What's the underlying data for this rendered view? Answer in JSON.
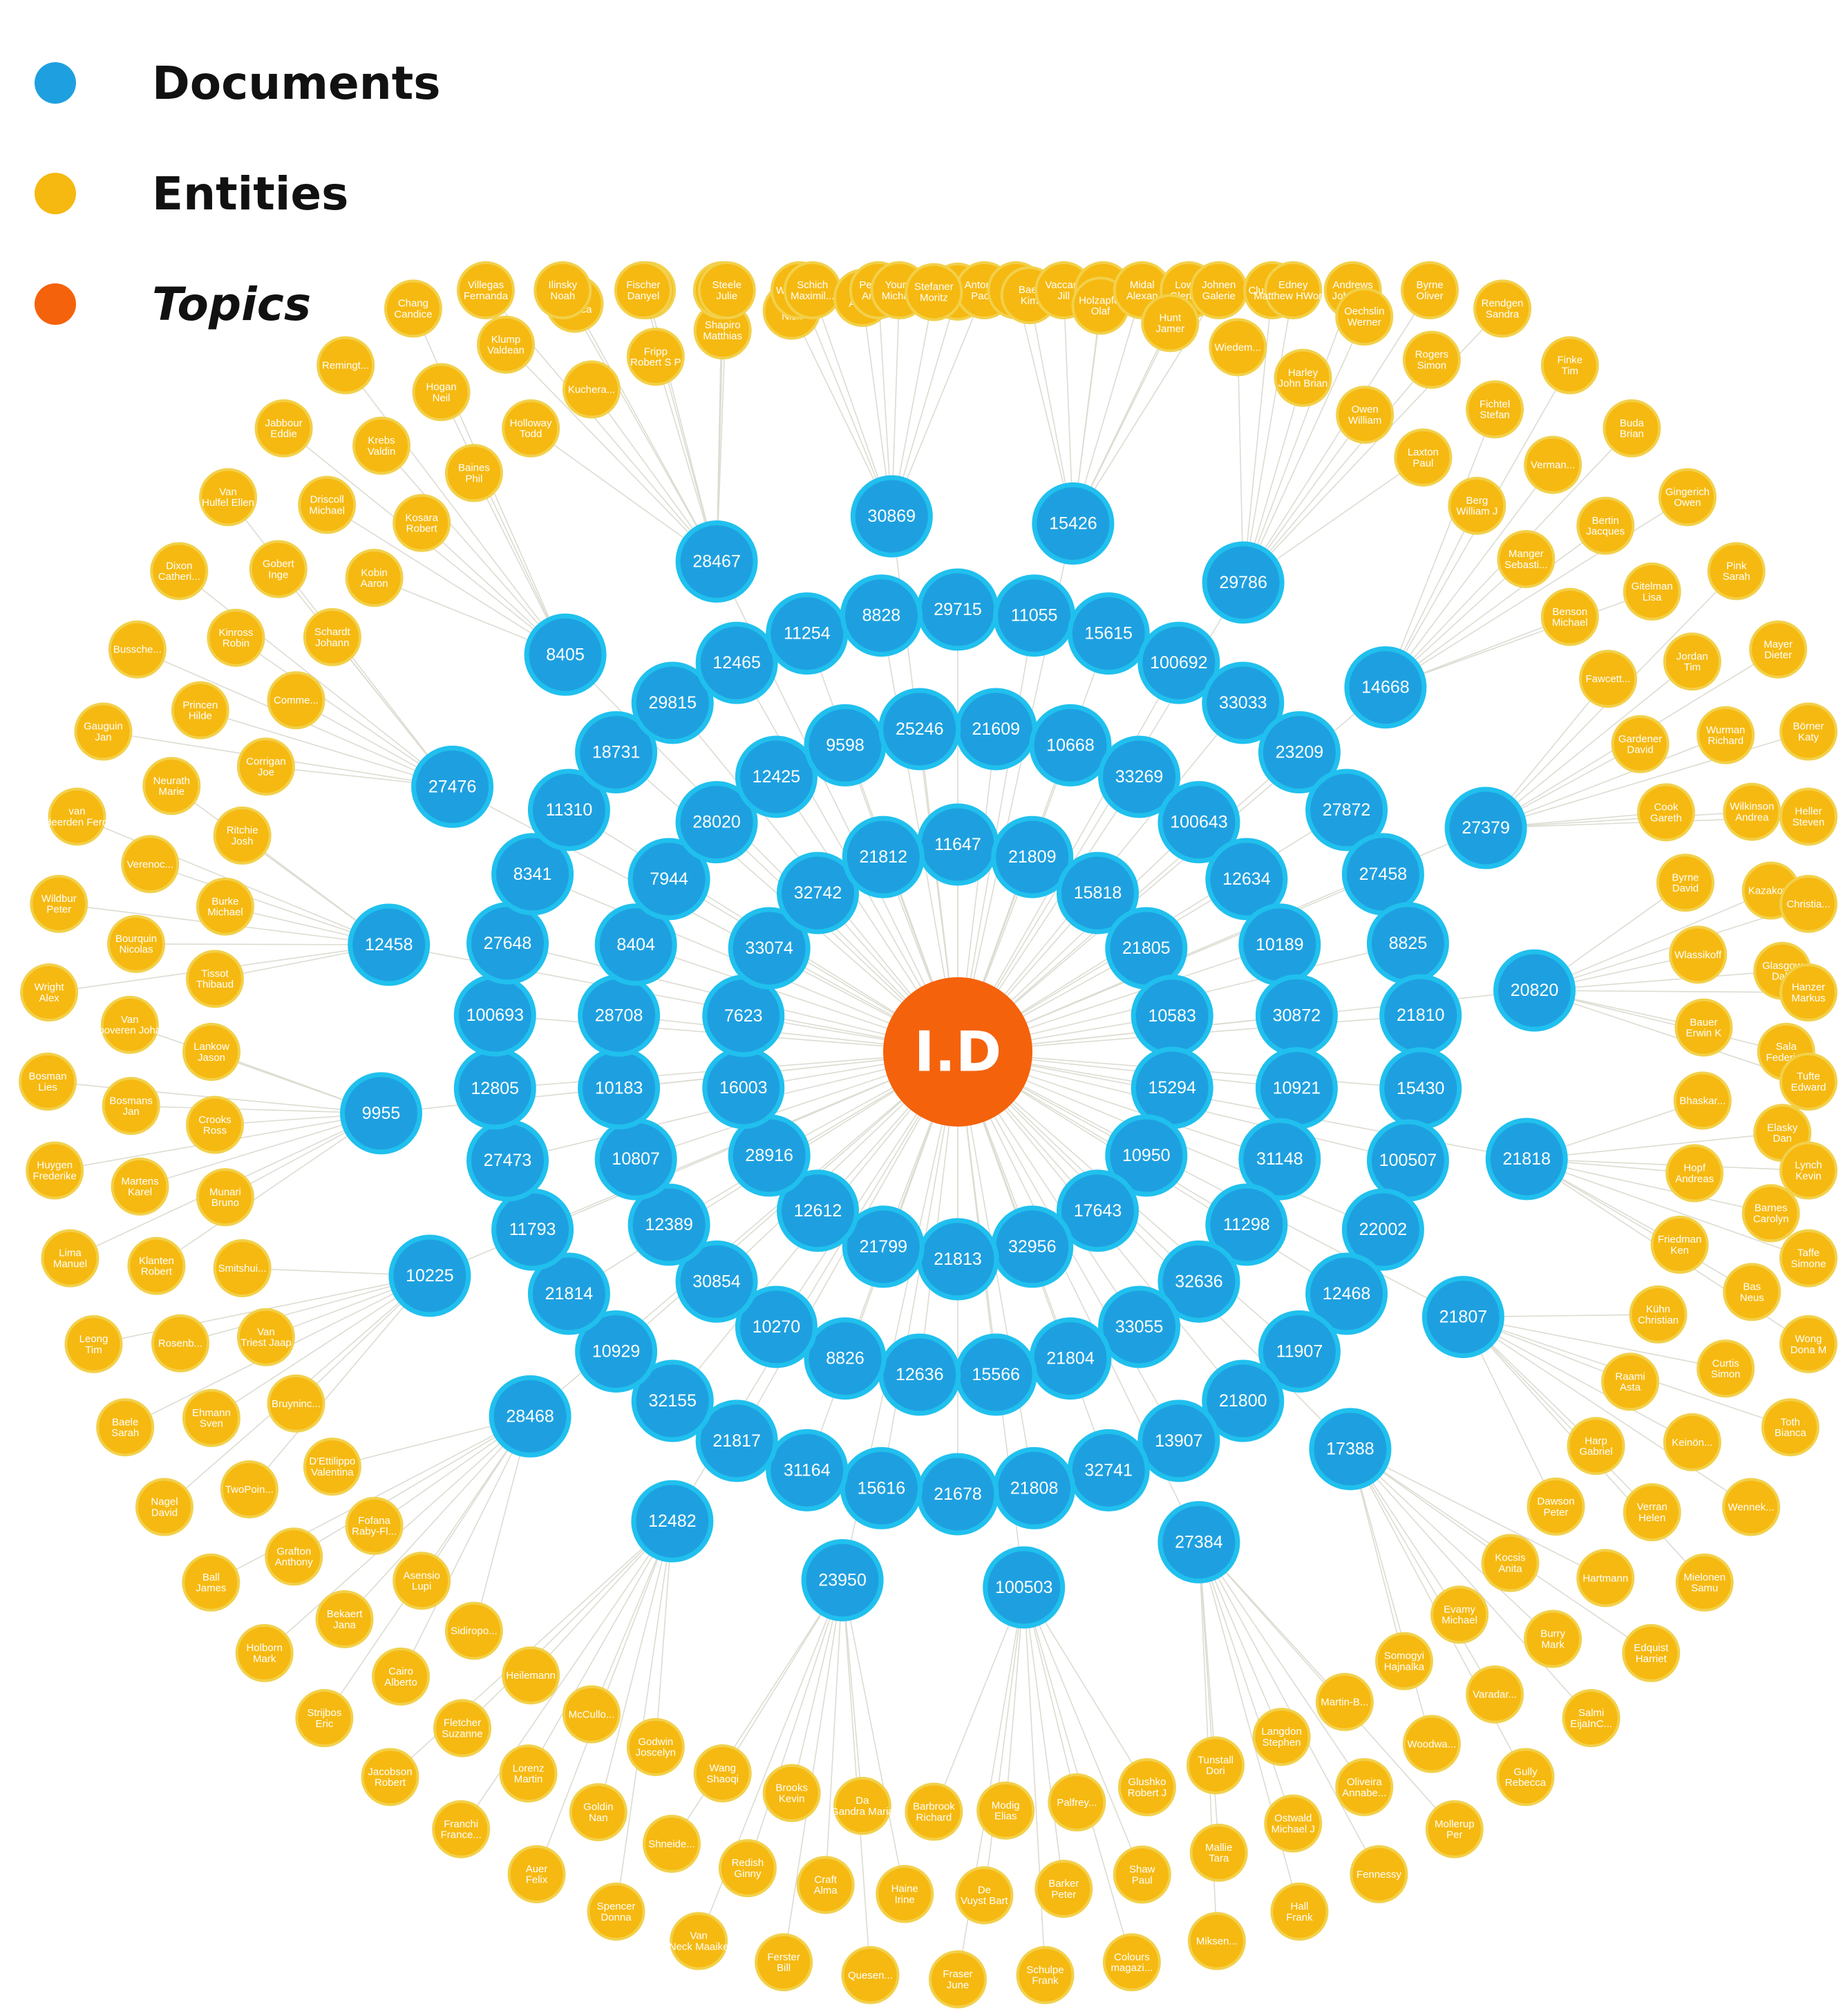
{
  "legend": [
    {
      "label": "Documents",
      "color": "#1ea0e0"
    },
    {
      "label": "Entities",
      "color": "#f6b911"
    },
    {
      "label": "Topics",
      "color": "#f5620c"
    }
  ],
  "center": {
    "label": "I.D",
    "color": "#f5620c"
  },
  "documents": [
    "11647",
    "21809",
    "15818",
    "21805",
    "10583",
    "15294",
    "10950",
    "17643",
    "32956",
    "21813",
    "21799",
    "12612",
    "28916",
    "16003",
    "7623",
    "33074",
    "32742",
    "21812",
    "21609",
    "10668",
    "33269",
    "100643",
    "12634",
    "10189",
    "30872",
    "10921",
    "31148",
    "11298",
    "32636",
    "33055",
    "21804",
    "15566",
    "12636",
    "8826",
    "10270",
    "30854",
    "12389",
    "10807",
    "10183",
    "28708",
    "8404",
    "7944",
    "28020",
    "12425",
    "9598",
    "25246",
    "29715",
    "11055",
    "15615",
    "100692",
    "33033",
    "23209",
    "27872",
    "27458",
    "8825",
    "21810",
    "15430",
    "100507",
    "22002",
    "12468",
    "11907",
    "21800",
    "13907",
    "32741",
    "21808",
    "21678",
    "15616",
    "31164",
    "21817",
    "32155",
    "10929",
    "21814",
    "11793",
    "27473",
    "12805",
    "100693",
    "27648",
    "8341",
    "11310",
    "18731",
    "29815",
    "12465",
    "11254",
    "8828",
    "15426",
    "29786",
    "14668",
    "27379",
    "20820",
    "21818",
    "21807",
    "17388",
    "27384",
    "100503",
    "23950",
    "12482",
    "28468",
    "10225",
    "9955",
    "12458",
    "27476",
    "8405",
    "28467",
    "30869"
  ],
  "entities": [
    "Slavin Kevin",
    "Antonelli Paola",
    "Vinh Khoi",
    "Baer Kim",
    "Vaccara Jill",
    "Spiegl Andreas",
    "Holzapfel Olaf",
    "Midal Alexan",
    "Lowry Glenn D",
    "Hunt Jamer",
    "Johnen Galerie",
    "Cluccarelli",
    "Wiedem...",
    "Edney Matthew HWorks",
    "Andrews John H...",
    "Harley John Brian",
    "Oechslin Werner",
    "Byrne Oliver",
    "Owen William",
    "Rogers Simon",
    "Rendgen Sandra",
    "Laxton Paul",
    "Fichtel Stefan",
    "Finke Tim",
    "Berg William J",
    "Verman...",
    "Buda Brian",
    "Manger Sebasti...",
    "Bertin Jacques",
    "Gingerich Owen",
    "Benson Michael",
    "Gitelman Lisa",
    "Pink Sarah",
    "Fawcett...",
    "Jordan Tim",
    "Mayer Dieter",
    "Gardener David",
    "Wurman Richard",
    "Börner Katy",
    "Cook Gareth",
    "Wilkinson Andrea",
    "Heller Steven",
    "Byrne David",
    "Kazakova",
    "Christia...",
    "Wlassikoff",
    "Glasgow Dale",
    "Hanzer Markus",
    "Bauer Erwin K",
    "Sala Federica",
    "Tufte Edward",
    "Bhaskar...",
    "Elasky Dan",
    "Lynch Kevin",
    "Hopf Andreas",
    "Barnes Carolyn",
    "Taffe Simone",
    "Friedman Ken",
    "Bas Neus",
    "Wong Dona M",
    "Kühn Christian",
    "Curtis Simon",
    "Toth Bianca",
    "Raami Asta",
    "Keinön...",
    "Wennek...",
    "Harp Gabriel",
    "Verran Helen",
    "Mielonen Samu",
    "Dawson Peter",
    "Hartmann",
    "Edquist Harriet",
    "Kocsis Anita",
    "Burry Mark",
    "Salmi EijaInC...",
    "Evamy Michael",
    "Varadar...",
    "Gully Rebecca",
    "Somogyi Hajnalka",
    "Woodwa...",
    "Mollerup Per",
    "Martin-B...",
    "Oliveira Annabe...",
    "Fennessy",
    "Langdon Stephen",
    "Ostwald Michael J",
    "Hall Frank",
    "Tunstall Dori",
    "Mallie Tara",
    "Miksen...",
    "Glushko Robert J",
    "Shaw Paul",
    "Colours magazi...",
    "Palfrey...",
    "Barker Peter",
    "Schulpe Frank",
    "Modig Elias",
    "De Vuyst Bart",
    "Fraser June",
    "Barbrook Richard",
    "Haine Irine",
    "Quesen...",
    "Da Gandra Maria",
    "Craft Alma",
    "Ferster Bill",
    "Brooks Kevin",
    "Redish Ginny",
    "Van Neck Maaike",
    "Wang Shaoqi",
    "Shneide...",
    "Spencer Donna",
    "Godwin Joscelyn",
    "Goldin Nan",
    "Auer Felix",
    "McCullo...",
    "Lorenz Martin",
    "Franchi France...",
    "Heilemann",
    "Fletcher Suzanne",
    "Jacobson Robert",
    "Sidiropo...",
    "Cairo Alberto",
    "Strijbos Eric",
    "Asensio Lupi",
    "Bekaert Jana",
    "Holborn Mark",
    "Fofana Raby-Fl...",
    "Grafton Anthony",
    "Ball James",
    "D'Ettilippo Valentina",
    "TwoPoin...",
    "Nagel David",
    "Bruyninc...",
    "Ehmann Sven",
    "Baele Sarah",
    "Van Triest Jaap",
    "Rosenb...",
    "Leong Tim",
    "Smitshui...",
    "Klanten Robert",
    "Lima Manuel",
    "Munari Bruno",
    "Martens Karel",
    "Huygen Frederike",
    "Crooks Ross",
    "Bosmans Jan",
    "Bosman Lies",
    "Lankow Jason",
    "Van Looveren Johan",
    "Wright Alex",
    "Tissot Thibaud",
    "Bourquin Nicolas",
    "Wildbur Peter",
    "Burke Michael",
    "Verenoc...",
    "van Heerden Ferdi",
    "Ritchie Josh",
    "Neurath Marie",
    "Gauguin Jan",
    "Corrigan Joe",
    "Princen Hilde",
    "Bussche...",
    "Comme...",
    "Kinross Robin",
    "Dixon Catheri...",
    "Schardt Johann",
    "Gobert Inge",
    "Van Hulfel Ellen",
    "Kobin Aaron",
    "Driscoll Michael",
    "Jabbour Eddie",
    "Kosara Robert",
    "Krebs Valdin",
    "Remingt...",
    "Baines Phil",
    "Hogan Neil",
    "Chang Candice",
    "Holloway Todd",
    "Klump Valdean",
    "Villegas Fernanda",
    "Kuchera...",
    "Hagy Jessica",
    "Ilinsky Noah",
    "Fripp Robert S P",
    "Hong Allen",
    "Fischer Danyel",
    "Shapiro Matthias",
    "Thorp Jer",
    "Steele Julie",
    "Bilton Nick",
    "Wattenb...",
    "Schich Maximil...",
    "Perer Adam",
    "Persson Anders",
    "Young Michael",
    "Stefaner Moritz"
  ]
}
